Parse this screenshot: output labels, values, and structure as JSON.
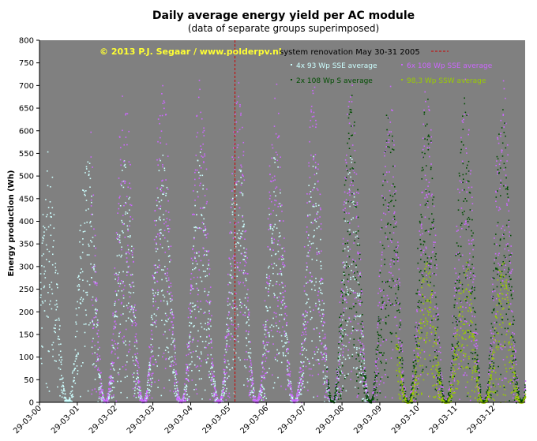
{
  "chart_data": {
    "type": "scatter",
    "title": "Daily  average energy yield per AC module",
    "subtitle": "(data of separate groups superimposed)",
    "ylabel": "Energy production (Wh)",
    "xlabel": "",
    "ylim": [
      0,
      800
    ],
    "yticks": [
      0,
      50,
      100,
      150,
      200,
      250,
      300,
      350,
      400,
      450,
      500,
      550,
      600,
      650,
      700,
      750,
      800
    ],
    "x_tick_labels": [
      "29-03-00",
      "29-03-01",
      "29-03-02",
      "29-03-03",
      "29-03-04",
      "29-03-05",
      "29-03-06",
      "29-03-07",
      "29-03-08",
      "29-03-09",
      "29-03-10",
      "29-03-11",
      "29-03-12"
    ],
    "xlim": [
      "2000-03-29",
      "2013-01-31"
    ],
    "grid": false,
    "background": "#808080",
    "copyright": "© 2013 P.J.  Segaar / www.polderpv.nl",
    "annotation": {
      "label": "system renovation  May 30-31 2005",
      "date": "2005-05-30",
      "color": "#cc0000"
    },
    "series": [
      {
        "name": "4x 93 Wp SSE average",
        "color": "#ccffff",
        "date_range": [
          "2000-03-29",
          "2008-12-31"
        ],
        "seasonal_profile": {
          "peak_month": "June",
          "summer_max": 560,
          "winter_min": 5
        }
      },
      {
        "name": "6x 108 Wp SSE average",
        "color": "#cc66ff",
        "date_range": [
          "2001-08-01",
          "2013-01-31"
        ],
        "seasonal_profile": {
          "peak_month": "June",
          "summer_max": 720,
          "winter_min": 5
        }
      },
      {
        "name": "2x 108 Wp S average",
        "color": "#004d00",
        "date_range": [
          "2007-11-01",
          "2013-01-31"
        ],
        "seasonal_profile": {
          "peak_month": "June",
          "summer_max": 680,
          "winter_min": 5
        }
      },
      {
        "name": "98,3 Wp SSW average",
        "color": "#99cc00",
        "date_range": [
          "2009-09-01",
          "2013-01-31"
        ],
        "seasonal_profile": {
          "peak_month": "June",
          "summer_max": 320,
          "winter_min": 0
        }
      }
    ]
  }
}
